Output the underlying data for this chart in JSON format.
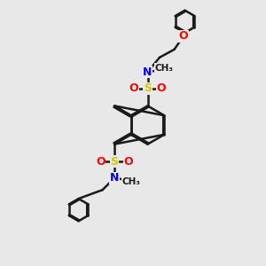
{
  "bg_color": "#e8e8e8",
  "bond_color": "#1a1a1a",
  "N_color": "#0000ff",
  "O_color": "#ff0000",
  "S_color": "#cccc00",
  "bond_width": 1.8,
  "figsize": [
    3.0,
    3.0
  ],
  "dpi": 100,
  "xlim": [
    0,
    10
  ],
  "ylim": [
    0,
    10
  ]
}
